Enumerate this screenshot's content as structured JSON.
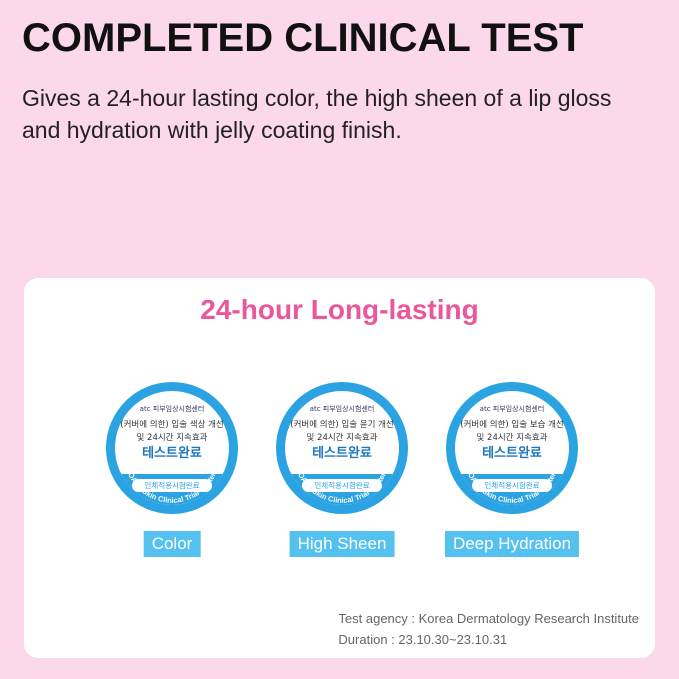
{
  "header": {
    "title": "COMPLETED CLINICAL TEST",
    "subtitle": "Gives a 24-hour lasting color, the high sheen of a lip gloss and hydration with jelly coating finish."
  },
  "card": {
    "heading": "24-hour Long-lasting",
    "badges": [
      {
        "line1": "(커버에 의한) 입술 색상 개선",
        "line2": "및 24시간 지속효과",
        "line3": "테스트완료",
        "label": "Color"
      },
      {
        "line1": "(커버에 의한) 입술 윤기 개선",
        "line2": "및 24시간 지속효과",
        "line3": "테스트완료",
        "label": "High Sheen"
      },
      {
        "line1": "(커버에 의한) 입술 보습 개선",
        "line2": "및 24시간 지속효과",
        "line3": "테스트완료",
        "label": "Deep Hydration"
      }
    ],
    "badge_common": {
      "org": "atc 피부임상시험센터",
      "pill": "인체적용시험완료",
      "arc": "OATC Skin Clinical Trial Center"
    },
    "agency": "Test agency : Korea Dermatology Research Institute",
    "duration": "Duration : 23.10.30~23.10.31"
  },
  "colors": {
    "background": "#fbd9ea",
    "heading": "#e9589a",
    "badge_blue": "#2ba3e3",
    "label_bg": "#55c1ef"
  }
}
